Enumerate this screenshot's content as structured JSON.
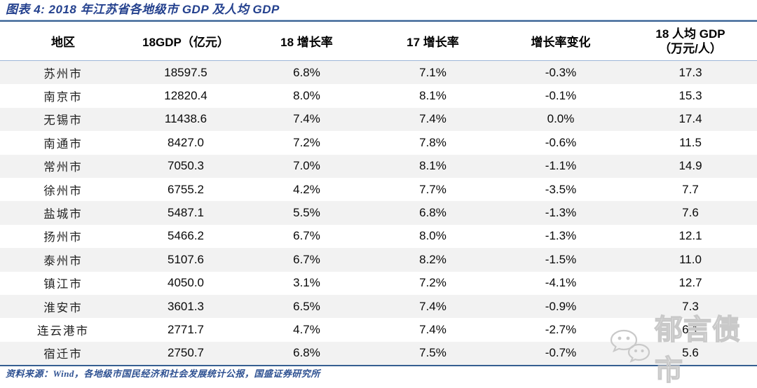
{
  "title": "图表 4:  2018 年江苏省各地级市 GDP 及人均 GDP",
  "header": {
    "region": "地区",
    "gdp18": "18GDP（亿元）",
    "growth18": "18 增长率",
    "growth17": "17 增长率",
    "growth_change": "增长率变化",
    "per_capita_line1": "18 人均 GDP",
    "per_capita_line2": "（万元/人）"
  },
  "footer": {
    "source": "资料来源：Wind，各地级市国民经济和社会发展统计公报，国盛证券研究所"
  },
  "watermark": {
    "icon": "wechat-icon",
    "text": "郁言债市"
  },
  "colors": {
    "title_navy": "#24418E",
    "rule_blue": "#365F91",
    "header_rule_blue": "#9DB7D8",
    "row_stripe": "#F2F2F2",
    "source_blue": "#2E5192",
    "watermark_gray": "#C9C9C9"
  },
  "chart_data": {
    "type": "table",
    "title": "2018 年江苏省各地级市 GDP 及人均 GDP",
    "columns": [
      "地区",
      "18GDP（亿元）",
      "18 增长率",
      "17 增长率",
      "增长率变化",
      "18 人均 GDP（万元/人）"
    ],
    "rows": [
      [
        "苏州市",
        "18597.5",
        "6.8%",
        "7.1%",
        "-0.3%",
        "17.3"
      ],
      [
        "南京市",
        "12820.4",
        "8.0%",
        "8.1%",
        "-0.1%",
        "15.3"
      ],
      [
        "无锡市",
        "11438.6",
        "7.4%",
        "7.4%",
        "0.0%",
        "17.4"
      ],
      [
        "南通市",
        "8427.0",
        "7.2%",
        "7.8%",
        "-0.6%",
        "11.5"
      ],
      [
        "常州市",
        "7050.3",
        "7.0%",
        "8.1%",
        "-1.1%",
        "14.9"
      ],
      [
        "徐州市",
        "6755.2",
        "4.2%",
        "7.7%",
        "-3.5%",
        "7.7"
      ],
      [
        "盐城市",
        "5487.1",
        "5.5%",
        "6.8%",
        "-1.3%",
        "7.6"
      ],
      [
        "扬州市",
        "5466.2",
        "6.7%",
        "8.0%",
        "-1.3%",
        "12.1"
      ],
      [
        "泰州市",
        "5107.6",
        "6.7%",
        "8.2%",
        "-1.5%",
        "11.0"
      ],
      [
        "镇江市",
        "4050.0",
        "3.1%",
        "7.2%",
        "-4.1%",
        "12.7"
      ],
      [
        "淮安市",
        "3601.3",
        "6.5%",
        "7.4%",
        "-0.9%",
        "7.3"
      ],
      [
        "连云港市",
        "2771.7",
        "4.7%",
        "7.4%",
        "-2.7%",
        "6.1"
      ],
      [
        "宿迁市",
        "2750.7",
        "6.8%",
        "7.5%",
        "-0.7%",
        "5.6"
      ]
    ]
  }
}
